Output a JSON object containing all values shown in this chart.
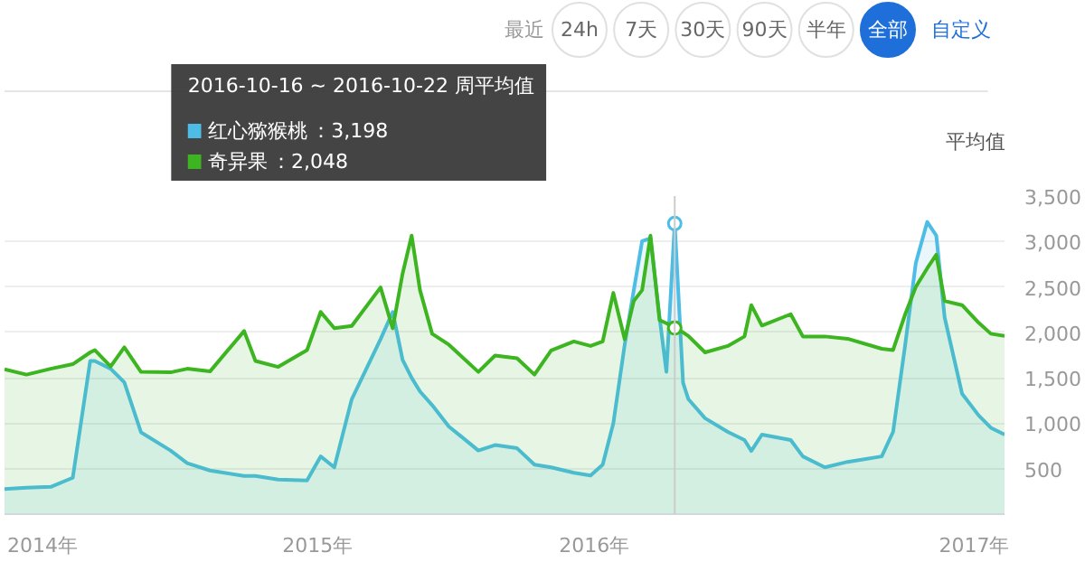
{
  "chart_data": {
    "type": "area",
    "x": [
      "2014-05-16",
      "2014-06-14",
      "2014-07-16",
      "2014-08-14",
      "2014-09-06",
      "2014-09-12",
      "2014-10-03",
      "2014-10-21",
      "2014-11-12",
      "2014-12-21",
      "2015-01-12",
      "2015-02-11",
      "2015-03-28",
      "2015-04-12",
      "2015-05-12",
      "2015-06-19",
      "2015-07-07",
      "2015-07-25",
      "2015-08-17",
      "2015-09-24",
      "2015-10-10",
      "2015-10-23",
      "2015-11-04",
      "2015-11-15",
      "2015-12-01",
      "2015-12-23",
      "2016-01-31",
      "2016-02-22",
      "2016-03-22",
      "2016-04-14",
      "2016-05-06",
      "2016-06-05",
      "2016-06-27",
      "2016-07-13",
      "2016-07-27",
      "2016-08-11",
      "2016-08-23",
      "2016-09-03",
      "2016-09-14",
      "2016-09-26",
      "2016-10-05",
      "2016-10-16",
      "2016-10-27",
      "2016-11-03",
      "2016-11-25",
      "2016-12-25",
      "2017-01-16",
      "2017-01-25",
      "2017-02-08",
      "2017-03-18",
      "2017-04-03",
      "2017-05-02",
      "2017-06-01",
      "2017-07-16",
      "2017-07-31",
      "2017-08-16",
      "2017-08-30",
      "2017-09-14",
      "2017-09-26",
      "2017-10-07",
      "2017-10-30",
      "2017-11-21",
      "2017-12-07",
      "2017-12-25"
    ],
    "series": [
      {
        "name": "红心猕猴桃",
        "color": "#4dbde6",
        "values": [
          275,
          290,
          300,
          400,
          1685,
          1685,
          1600,
          1450,
          900,
          700,
          560,
          480,
          420,
          420,
          380,
          370,
          635,
          515,
          1265,
          1925,
          2225,
          1700,
          1500,
          1350,
          1200,
          965,
          700,
          760,
          725,
          545,
          515,
          455,
          425,
          545,
          1000,
          1865,
          2465,
          3005,
          3035,
          2165,
          1565,
          3198,
          1445,
          1265,
          1055,
          905,
          815,
          695,
          875,
          815,
          635,
          515,
          575,
          635,
          905,
          1865,
          2765,
          3215,
          3065,
          2165,
          1325,
          1085,
          950,
          875
        ]
      },
      {
        "name": "奇异果",
        "color": "#3cb521",
        "values": [
          1595,
          1535,
          1600,
          1650,
          1780,
          1805,
          1625,
          1835,
          1565,
          1560,
          1600,
          1570,
          2015,
          1685,
          1620,
          1805,
          2225,
          2045,
          2070,
          2495,
          2045,
          2645,
          3065,
          2465,
          1985,
          1865,
          1565,
          1745,
          1715,
          1535,
          1800,
          1900,
          1850,
          1900,
          2435,
          1925,
          2345,
          2465,
          3065,
          2135,
          2100,
          2048,
          2000,
          1960,
          1780,
          1850,
          1955,
          2300,
          2075,
          2200,
          1955,
          1955,
          1930,
          1820,
          1805,
          2200,
          2500,
          2705,
          2855,
          2345,
          2300,
          2105,
          1985,
          1960
        ]
      }
    ],
    "xlim": [
      "2014-05-16",
      "2017-12-25"
    ],
    "xticks": [
      {
        "value": "2014-07-05",
        "label": "2014年"
      },
      {
        "value": "2015-07-03",
        "label": "2015年"
      },
      {
        "value": "2016-07-02",
        "label": "2016年"
      },
      {
        "value": "2017-11-15",
        "label": "2017年"
      }
    ],
    "ylim": [
      0,
      3500
    ],
    "yticks": [
      {
        "value": 500,
        "label": "500"
      },
      {
        "value": 1000,
        "label": "1,000"
      },
      {
        "value": 1500,
        "label": "1,500"
      },
      {
        "value": 2000,
        "label": "2,000"
      },
      {
        "value": 2500,
        "label": "2,500"
      },
      {
        "value": 3000,
        "label": "3,000"
      },
      {
        "value": 3500,
        "label": "3,500"
      }
    ],
    "grid": "y",
    "legend": "top left",
    "marker": "none",
    "ref_lines": [
      {
        "axis": "x",
        "value": "2016-10-16",
        "color": "#cccccc"
      }
    ],
    "annotations": [
      "最近",
      "24h",
      "7天",
      "30天",
      "90天",
      "半年",
      "全部",
      "自定义",
      "平均值",
      "2016-10-16 ~ 2016-10-22 周平均值",
      "：3,198",
      "：2,048"
    ]
  }
}
